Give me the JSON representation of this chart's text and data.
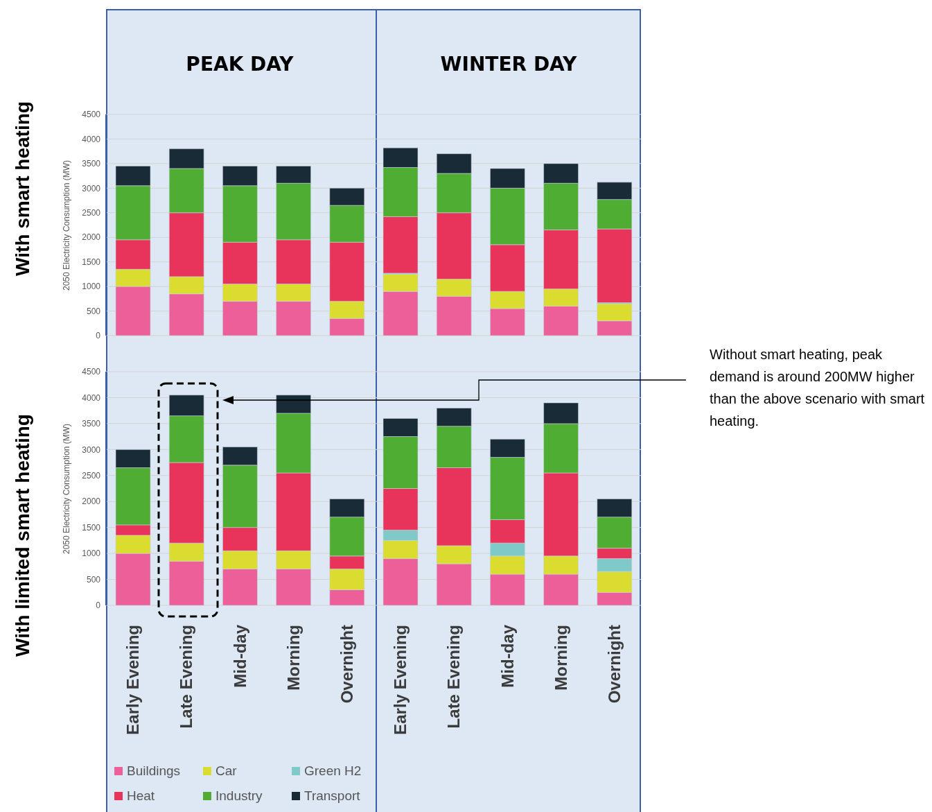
{
  "chart_data": [
    {
      "type": "bar",
      "ylabel": "2050 Electricity Consumption (MW)",
      "annotations": [
        "PEAK DAY",
        "WINTER DAY",
        "With smart heating"
      ],
      "categories": [
        null,
        null,
        null,
        null,
        null,
        null,
        null,
        null,
        null,
        null
      ],
      "stacked": true,
      "ylim": [
        0,
        4500
      ],
      "yticks": [
        0,
        500,
        1000,
        1500,
        2000,
        2500,
        3000,
        3500,
        4000,
        4500
      ],
      "grid": "y",
      "legend": false,
      "tick_labels": "y",
      "series": [
        {
          "color": "#ec5f99",
          "values": [
            1000,
            850,
            700,
            700,
            350,
            900,
            800,
            550,
            600,
            300
          ]
        },
        {
          "color": "#dbdc30",
          "values": [
            350,
            350,
            350,
            350,
            350,
            350,
            350,
            350,
            350,
            350
          ]
        },
        {
          "color": "#7fcac8",
          "values": [
            null,
            null,
            null,
            null,
            null,
            20,
            null,
            null,
            null,
            20
          ]
        },
        {
          "color": "#e8345a",
          "values": [
            600,
            1300,
            850,
            900,
            1200,
            1150,
            1350,
            950,
            1200,
            1500
          ]
        },
        {
          "color": "#4fad33",
          "values": [
            1100,
            900,
            1150,
            1150,
            750,
            1000,
            800,
            1150,
            950,
            600
          ]
        },
        {
          "color": "#182b37",
          "values": [
            400,
            400,
            400,
            350,
            350,
            400,
            400,
            400,
            400,
            350
          ]
        }
      ]
    },
    {
      "type": "bar",
      "ylabel": "2050 Electricity Consumption (MW)",
      "annotations": [
        "With limited smart heating",
        "Without smart heating, peak demand is around 200MW higher than the above scenario with smart heating."
      ],
      "categories": [
        "Early Evening",
        "Late Evening",
        "Mid-day",
        "Morning",
        "Overnight",
        "Early Evening",
        "Late Evening",
        "Mid-day",
        "Morning",
        "Overnight"
      ],
      "stacked": true,
      "ylim": [
        0,
        4500
      ],
      "yticks": [
        0,
        500,
        1000,
        1500,
        2000,
        2500,
        3000,
        3500,
        4000,
        4500
      ],
      "grid": "y",
      "legend": "bottom",
      "series": [
        {
          "name": "Buildings",
          "color": "#ec5f99",
          "values": [
            1000,
            850,
            700,
            700,
            300,
            900,
            800,
            600,
            600,
            250
          ]
        },
        {
          "name": "Car",
          "color": "#dbdc30",
          "values": [
            350,
            350,
            350,
            350,
            400,
            350,
            350,
            350,
            350,
            400
          ]
        },
        {
          "name": "Green H2",
          "color": "#7fcac8",
          "values": [
            null,
            null,
            null,
            null,
            null,
            200,
            null,
            250,
            null,
            250
          ]
        },
        {
          "name": "Heat",
          "color": "#e8345a",
          "values": [
            200,
            1550,
            450,
            1500,
            250,
            800,
            1500,
            450,
            1600,
            200
          ]
        },
        {
          "name": "Industry",
          "color": "#4fad33",
          "values": [
            1100,
            900,
            1200,
            1150,
            750,
            1000,
            800,
            1200,
            950,
            600
          ]
        },
        {
          "name": "Transport",
          "color": "#182b37",
          "values": [
            350,
            400,
            350,
            350,
            350,
            350,
            350,
            350,
            400,
            350
          ]
        }
      ]
    }
  ]
}
